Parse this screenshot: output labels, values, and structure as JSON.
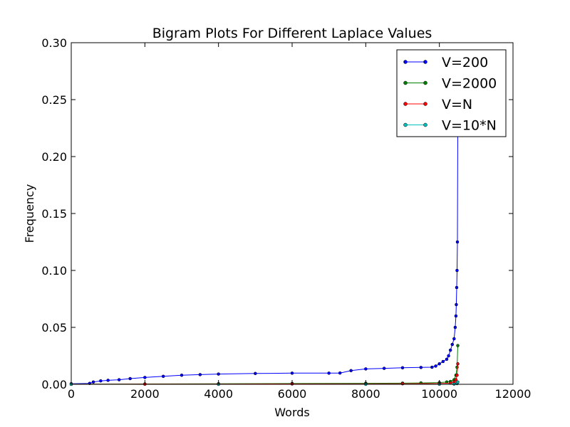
{
  "chart_data": {
    "type": "line",
    "title": "Bigram Plots For Different Laplace Values",
    "xlabel": "Words",
    "ylabel": "Frequency",
    "xlim": [
      0,
      12000
    ],
    "ylim": [
      0,
      0.3
    ],
    "xticks": [
      0,
      2000,
      4000,
      6000,
      8000,
      10000,
      12000
    ],
    "yticks": [
      0.0,
      0.05,
      0.1,
      0.15,
      0.2,
      0.25,
      0.3
    ],
    "xtick_labels": [
      "0",
      "2000",
      "4000",
      "6000",
      "8000",
      "10000",
      "12000"
    ],
    "ytick_labels": [
      "0.00",
      "0.05",
      "0.10",
      "0.15",
      "0.20",
      "0.25",
      "0.30"
    ],
    "grid": false,
    "legend": "top-right",
    "series": [
      {
        "name": "V=200",
        "color": "#0000ff",
        "x": [
          0,
          500,
          600,
          800,
          1000,
          1300,
          1600,
          2000,
          2500,
          3000,
          3500,
          4000,
          5000,
          6000,
          7000,
          7300,
          7600,
          8000,
          8500,
          9000,
          9500,
          9800,
          9900,
          10000,
          10100,
          10200,
          10250,
          10300,
          10350,
          10400,
          10430,
          10450,
          10460,
          10470,
          10480,
          10490,
          10500
        ],
        "y": [
          0.0005,
          0.0008,
          0.002,
          0.003,
          0.0035,
          0.004,
          0.005,
          0.006,
          0.007,
          0.008,
          0.0085,
          0.009,
          0.0095,
          0.0098,
          0.0098,
          0.0099,
          0.012,
          0.0135,
          0.014,
          0.0145,
          0.0148,
          0.015,
          0.016,
          0.018,
          0.02,
          0.022,
          0.025,
          0.03,
          0.035,
          0.04,
          0.05,
          0.06,
          0.07,
          0.085,
          0.1,
          0.125,
          0.23
        ]
      },
      {
        "name": "V=2000",
        "color": "#008000",
        "x": [
          0,
          2000,
          4000,
          6000,
          8000,
          9000,
          9500,
          10000,
          10200,
          10300,
          10400,
          10450,
          10480,
          10500
        ],
        "y": [
          0.0001,
          0.0003,
          0.0005,
          0.0007,
          0.0009,
          0.001,
          0.0012,
          0.0015,
          0.002,
          0.0025,
          0.004,
          0.008,
          0.015,
          0.034
        ]
      },
      {
        "name": "V=N",
        "color": "#ff0000",
        "x": [
          0,
          2000,
          4000,
          6000,
          8000,
          9000,
          10000,
          10300,
          10400,
          10450,
          10480,
          10500
        ],
        "y": [
          5e-05,
          0.0001,
          0.0002,
          0.0003,
          0.0004,
          0.0005,
          0.0007,
          0.001,
          0.002,
          0.004,
          0.008,
          0.018
        ]
      },
      {
        "name": "V=10*N",
        "color": "#00bfbf",
        "x": [
          0,
          4000,
          8000,
          10000,
          10400,
          10480,
          10500
        ],
        "y": [
          1e-05,
          2e-05,
          4e-05,
          6e-05,
          0.0002,
          0.0006,
          0.002
        ]
      }
    ]
  }
}
